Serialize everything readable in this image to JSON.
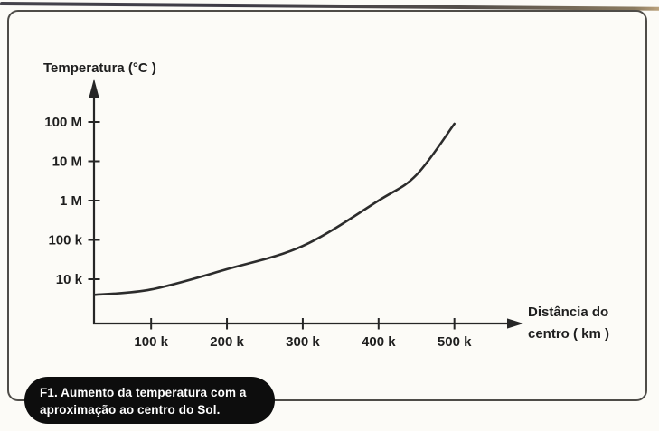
{
  "caption": {
    "line1": "F1. Aumento da temperatura com a",
    "line2": "aproximação ao centro do Sol."
  },
  "chart_data": {
    "type": "line",
    "title": "",
    "ylabel": "Temperatura (°C )",
    "xlabel": "Distância do centro ( km )",
    "xlabel_lines": [
      "Distância do",
      "centro ( km )"
    ],
    "x_scale": "linear",
    "y_scale": "log",
    "grid": false,
    "legend": false,
    "xlim_km": [
      0,
      560000
    ],
    "ylim_c": [
      4000,
      100000000
    ],
    "y_ticks": [
      {
        "label": "100 M",
        "value": 100000000
      },
      {
        "label": "10 M",
        "value": 10000000
      },
      {
        "label": "1 M",
        "value": 1000000
      },
      {
        "label": "100 k",
        "value": 100000
      },
      {
        "label": "10 k",
        "value": 10000
      }
    ],
    "x_ticks": [
      {
        "label": "100 k",
        "value": 100000
      },
      {
        "label": "200 k",
        "value": 200000
      },
      {
        "label": "300 k",
        "value": 300000
      },
      {
        "label": "400 k",
        "value": 400000
      },
      {
        "label": "500 k",
        "value": 500000
      }
    ],
    "series": [
      {
        "name": "Temperatura",
        "points": [
          {
            "x_km": 25000,
            "y_c": 4000
          },
          {
            "x_km": 100000,
            "y_c": 5500
          },
          {
            "x_km": 200000,
            "y_c": 18000
          },
          {
            "x_km": 300000,
            "y_c": 70000
          },
          {
            "x_km": 400000,
            "y_c": 1000000
          },
          {
            "x_km": 450000,
            "y_c": 4500000
          },
          {
            "x_km": 500000,
            "y_c": 90000000
          }
        ]
      }
    ]
  }
}
